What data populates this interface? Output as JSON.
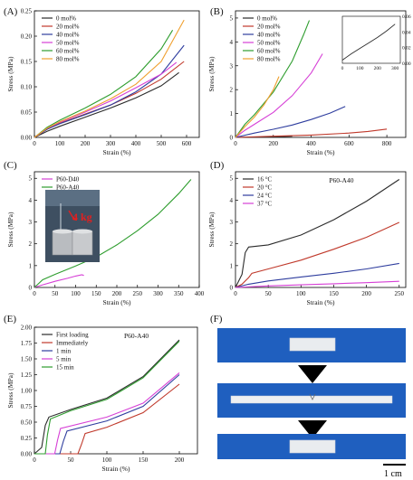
{
  "panels": {
    "A": {
      "label": "(A)"
    },
    "B": {
      "label": "(B)"
    },
    "C": {
      "label": "(C)"
    },
    "D": {
      "label": "(D)"
    },
    "E": {
      "label": "(E)"
    },
    "F": {
      "label": "(F)"
    }
  },
  "scale_bar": "1 cm",
  "weight_label": "4 kg",
  "colors": {
    "black": "#2b2b2b",
    "red": "#c0392b",
    "blue": "#2e3d9e",
    "magenta": "#d63fd6",
    "green": "#2e9d2e",
    "orange": "#f0a030",
    "photo_blue": "#1f5fbf"
  },
  "chart_data": [
    {
      "panel": "A",
      "type": "line",
      "xlabel": "Strain (%)",
      "ylabel": "Stress (MPa)",
      "xlim": [
        0,
        650
      ],
      "ylim": [
        0,
        0.25
      ],
      "xticks": [
        0,
        100,
        200,
        300,
        400,
        500,
        600
      ],
      "yticks": [
        0.0,
        0.05,
        0.1,
        0.15,
        0.2,
        0.25
      ],
      "legend_position": "top-left",
      "series": [
        {
          "name": "0 mol%",
          "color": "#2b2b2b",
          "x": [
            0,
            50,
            100,
            200,
            300,
            400,
            500,
            570
          ],
          "y": [
            0,
            0.012,
            0.022,
            0.04,
            0.058,
            0.078,
            0.102,
            0.128
          ]
        },
        {
          "name": "20 mol%",
          "color": "#c0392b",
          "x": [
            0,
            50,
            100,
            200,
            300,
            400,
            500,
            590
          ],
          "y": [
            0,
            0.016,
            0.028,
            0.046,
            0.064,
            0.087,
            0.115,
            0.15
          ]
        },
        {
          "name": "40 mol%",
          "color": "#2e3d9e",
          "x": [
            0,
            50,
            100,
            200,
            300,
            400,
            500,
            590
          ],
          "y": [
            0,
            0.016,
            0.027,
            0.045,
            0.064,
            0.09,
            0.125,
            0.182
          ]
        },
        {
          "name": "50 mol%",
          "color": "#d63fd6",
          "x": [
            0,
            50,
            100,
            200,
            300,
            400,
            500,
            560
          ],
          "y": [
            0,
            0.018,
            0.03,
            0.05,
            0.072,
            0.098,
            0.125,
            0.148
          ]
        },
        {
          "name": "60 mol%",
          "color": "#2e9d2e",
          "x": [
            0,
            50,
            100,
            200,
            300,
            400,
            500,
            545
          ],
          "y": [
            0,
            0.02,
            0.034,
            0.058,
            0.085,
            0.12,
            0.175,
            0.212
          ]
        },
        {
          "name": "80 mol%",
          "color": "#f0a030",
          "x": [
            0,
            50,
            100,
            200,
            300,
            400,
            500,
            590
          ],
          "y": [
            0,
            0.018,
            0.031,
            0.052,
            0.076,
            0.105,
            0.15,
            0.232
          ]
        }
      ]
    },
    {
      "panel": "B",
      "type": "line",
      "xlabel": "Strain (%)",
      "ylabel": "Stress (MPa)",
      "xlim": [
        0,
        900
      ],
      "ylim": [
        0,
        5.3
      ],
      "xticks": [
        0,
        200,
        400,
        600,
        800
      ],
      "yticks": [
        0,
        1,
        2,
        3,
        4,
        5
      ],
      "legend_position": "top-left",
      "series": [
        {
          "name": "0 mol%",
          "color": "#2b2b2b",
          "x": [
            0,
            100,
            200,
            300
          ],
          "y": [
            0,
            0.012,
            0.025,
            0.05
          ]
        },
        {
          "name": "20 mol%",
          "color": "#c0392b",
          "x": [
            0,
            200,
            400,
            600,
            700,
            800
          ],
          "y": [
            0,
            0.05,
            0.1,
            0.18,
            0.25,
            0.35
          ]
        },
        {
          "name": "40 mol%",
          "color": "#2e3d9e",
          "x": [
            0,
            100,
            200,
            300,
            400,
            500,
            580
          ],
          "y": [
            0,
            0.18,
            0.34,
            0.52,
            0.75,
            1.02,
            1.3
          ]
        },
        {
          "name": "50 mol%",
          "color": "#d63fd6",
          "x": [
            0,
            50,
            100,
            200,
            300,
            400,
            460
          ],
          "y": [
            0,
            0.3,
            0.55,
            1.05,
            1.75,
            2.7,
            3.5
          ]
        },
        {
          "name": "60 mol%",
          "color": "#2e9d2e",
          "x": [
            0,
            50,
            100,
            200,
            300,
            360,
            390
          ],
          "y": [
            0,
            0.55,
            0.95,
            1.9,
            3.2,
            4.3,
            4.9
          ]
        },
        {
          "name": "80 mol%",
          "color": "#f0a030",
          "x": [
            0,
            50,
            100,
            150,
            200,
            230
          ],
          "y": [
            0,
            0.45,
            0.85,
            1.35,
            2.0,
            2.55
          ]
        }
      ],
      "inset": {
        "xlim": [
          0,
          330
        ],
        "ylim": [
          0,
          0.06
        ],
        "xticks": [
          0,
          100,
          200,
          300
        ],
        "yticks": [
          0.0,
          0.02,
          0.04,
          0.06
        ],
        "series": [
          {
            "name": "0 mol%",
            "color": "#2b2b2b",
            "x": [
              0,
              50,
              100,
              150,
              200,
              250,
              300
            ],
            "y": [
              0.004,
              0.012,
              0.019,
              0.026,
              0.033,
              0.041,
              0.05
            ]
          }
        ]
      }
    },
    {
      "panel": "C",
      "type": "line",
      "xlabel": "Strain (%)",
      "ylabel": "Stress (MPa)",
      "xlim": [
        0,
        400
      ],
      "ylim": [
        0,
        5.3
      ],
      "xticks": [
        0,
        50,
        100,
        150,
        200,
        250,
        300,
        350,
        400
      ],
      "yticks": [
        0,
        1,
        2,
        3,
        4,
        5
      ],
      "legend_position": "top-left",
      "series": [
        {
          "name": "P60-D40",
          "color": "#d63fd6",
          "x": [
            0,
            20,
            50,
            80,
            100,
            115,
            120
          ],
          "y": [
            0,
            0.12,
            0.28,
            0.42,
            0.52,
            0.58,
            0.55
          ]
        },
        {
          "name": "P60-A40",
          "color": "#2e9d2e",
          "x": [
            0,
            20,
            50,
            100,
            150,
            200,
            250,
            300,
            350,
            380
          ],
          "y": [
            0,
            0.35,
            0.6,
            0.98,
            1.4,
            1.95,
            2.6,
            3.35,
            4.3,
            4.95
          ]
        }
      ]
    },
    {
      "panel": "D",
      "type": "line",
      "title": "P60-A40",
      "xlabel": "Strain (%)",
      "ylabel": "Stress (MPa)",
      "xlim": [
        0,
        260
      ],
      "ylim": [
        0,
        5.3
      ],
      "xticks": [
        0,
        50,
        100,
        150,
        200,
        250
      ],
      "yticks": [
        0,
        1,
        2,
        3,
        4,
        5
      ],
      "legend_position": "top-left",
      "series": [
        {
          "name": "16 °C",
          "color": "#2b2b2b",
          "x": [
            0,
            10,
            15,
            20,
            50,
            100,
            150,
            200,
            250
          ],
          "y": [
            0,
            0.6,
            1.6,
            1.85,
            1.95,
            2.4,
            3.1,
            3.95,
            4.95
          ]
        },
        {
          "name": "20 °C",
          "color": "#c0392b",
          "x": [
            0,
            10,
            20,
            25,
            50,
            100,
            150,
            200,
            250
          ],
          "y": [
            0,
            0.15,
            0.45,
            0.65,
            0.85,
            1.25,
            1.75,
            2.3,
            2.98
          ]
        },
        {
          "name": "24 °C",
          "color": "#2e3d9e",
          "x": [
            0,
            20,
            50,
            100,
            150,
            200,
            250
          ],
          "y": [
            0,
            0.15,
            0.3,
            0.48,
            0.65,
            0.85,
            1.1
          ]
        },
        {
          "name": "37 °C",
          "color": "#d63fd6",
          "x": [
            0,
            50,
            100,
            150,
            200,
            250
          ],
          "y": [
            0,
            0.07,
            0.12,
            0.17,
            0.22,
            0.28
          ]
        }
      ]
    },
    {
      "panel": "E",
      "type": "line",
      "title": "P60-A40",
      "xlabel": "Strain (%)",
      "ylabel": "Stress (MPa)",
      "xlim": [
        0,
        225
      ],
      "ylim": [
        0,
        2.0
      ],
      "xticks": [
        0,
        50,
        100,
        150,
        200
      ],
      "yticks": [
        0.0,
        0.25,
        0.5,
        0.75,
        1.0,
        1.25,
        1.5,
        1.75,
        2.0
      ],
      "legend_position": "top-left",
      "series": [
        {
          "name": "First loading",
          "color": "#2b2b2b",
          "x": [
            0,
            10,
            15,
            20,
            50,
            100,
            150,
            200
          ],
          "y": [
            0,
            0.1,
            0.45,
            0.58,
            0.7,
            0.88,
            1.22,
            1.8
          ]
        },
        {
          "name": "Immediately",
          "color": "#c0392b",
          "x": [
            0,
            60,
            65,
            70,
            100,
            150,
            200
          ],
          "y": [
            0,
            0,
            0.15,
            0.32,
            0.42,
            0.65,
            1.1
          ]
        },
        {
          "name": "1 min",
          "color": "#2e3d9e",
          "x": [
            0,
            35,
            40,
            45,
            100,
            150,
            200
          ],
          "y": [
            0,
            0,
            0.2,
            0.36,
            0.52,
            0.75,
            1.25
          ]
        },
        {
          "name": "5 min",
          "color": "#d63fd6",
          "x": [
            0,
            28,
            32,
            36,
            100,
            150,
            200
          ],
          "y": [
            0,
            0,
            0.22,
            0.4,
            0.58,
            0.8,
            1.28
          ]
        },
        {
          "name": "15 min",
          "color": "#2e9d2e",
          "x": [
            0,
            15,
            18,
            22,
            50,
            100,
            150,
            200
          ],
          "y": [
            0,
            0,
            0.3,
            0.55,
            0.68,
            0.86,
            1.2,
            1.78
          ]
        }
      ]
    }
  ]
}
